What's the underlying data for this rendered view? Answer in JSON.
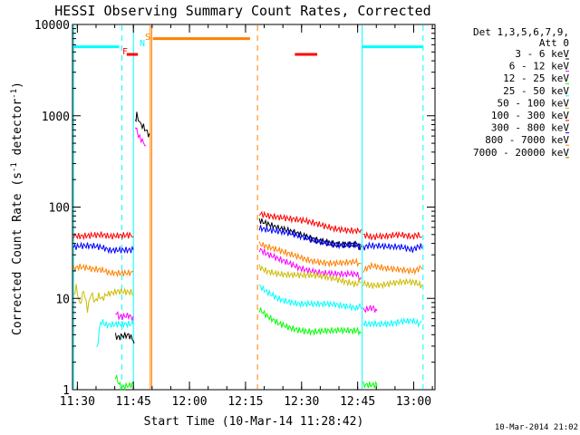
{
  "chart_data": {
    "type": "line",
    "title": "HESSI Observing Summary Count Rates, Corrected",
    "xlabel": "Start Time (10-Mar-14 11:28:42)",
    "ylabel_parts": [
      "Corrected Count Rate (s",
      "-1",
      " detector",
      "-1",
      ")"
    ],
    "x_unit": "minutes after 11:28:42",
    "xlim": [
      0,
      97
    ],
    "ylim": [
      1,
      10000
    ],
    "yscale": "log",
    "x_ticks": [
      {
        "label": "11:30",
        "x": 1.3
      },
      {
        "label": "11:45",
        "x": 16.3
      },
      {
        "label": "12:00",
        "x": 31.3
      },
      {
        "label": "12:15",
        "x": 46.3
      },
      {
        "label": "12:30",
        "x": 61.3
      },
      {
        "label": "12:45",
        "x": 76.3
      },
      {
        "label": "13:00",
        "x": 91.3
      }
    ],
    "y_ticks": [
      {
        "label": "1",
        "y": 1
      },
      {
        "label": "10",
        "y": 10
      },
      {
        "label": "100",
        "y": 100
      },
      {
        "label": "1000",
        "y": 1000
      },
      {
        "label": "10000",
        "y": 10000
      }
    ],
    "legend": {
      "header": [
        "Det 1,3,5,6,7,9,",
        "Att 0"
      ],
      "placement": "right"
    },
    "series": [
      {
        "name": "3 - 6 keV",
        "color": "#000000",
        "segments": [
          [
            [
              11.5,
              4.0
            ],
            [
              13,
              3.9
            ],
            [
              15,
              4.1
            ],
            [
              16.3,
              3.6
            ],
            [
              16.5,
              3.2
            ]
          ],
          [
            [
              16.8,
              950
            ],
            [
              17.2,
              980
            ],
            [
              18,
              880
            ],
            [
              19,
              800
            ],
            [
              20,
              700
            ],
            [
              20.6,
              640
            ]
          ],
          [
            [
              50,
              72
            ],
            [
              52,
              64
            ],
            [
              55,
              56
            ],
            [
              58,
              52
            ],
            [
              61,
              49
            ],
            [
              64,
              46
            ],
            [
              67,
              44
            ],
            [
              70,
              42
            ],
            [
              73,
              40
            ],
            [
              76,
              39
            ],
            [
              77.2,
              38
            ]
          ]
        ]
      },
      {
        "name": "6 - 12 keV",
        "color": "#ff00ff",
        "segments": [
          [
            [
              11.5,
              6.8
            ],
            [
              13,
              6.6
            ],
            [
              15,
              6.9
            ],
            [
              16.3,
              6.4
            ]
          ],
          [
            [
              16.8,
              720
            ],
            [
              17.2,
              690
            ],
            [
              18,
              600
            ],
            [
              19,
              520
            ],
            [
              19.7,
              470
            ]
          ],
          [
            [
              50,
              33
            ],
            [
              52,
              29
            ],
            [
              55,
              26
            ],
            [
              58,
              24
            ],
            [
              61,
              22
            ],
            [
              64,
              21
            ],
            [
              67,
              20
            ],
            [
              70,
              19
            ],
            [
              73,
              18
            ],
            [
              76,
              17.5
            ],
            [
              77.2,
              17
            ]
          ],
          [
            [
              77.8,
              7.8
            ],
            [
              80,
              7.5
            ],
            [
              81.5,
              7.3
            ]
          ]
        ]
      },
      {
        "name": "12 - 25 keV",
        "color": "#00ff00",
        "segments": [
          [
            [
              11.5,
              1.3
            ],
            [
              13,
              1.1
            ],
            [
              16.3,
              1.2
            ]
          ],
          [
            [
              50,
              7.2
            ],
            [
              52,
              6.2
            ],
            [
              55,
              5.4
            ],
            [
              58,
              5.0
            ],
            [
              61,
              4.7
            ],
            [
              64,
              4.5
            ],
            [
              67,
              4.4
            ],
            [
              70,
              4.3
            ],
            [
              73,
              4.2
            ],
            [
              76,
              4.2
            ],
            [
              77.2,
              4.1
            ]
          ],
          [
            [
              77.8,
              1.2
            ],
            [
              81.5,
              1.1
            ]
          ]
        ]
      },
      {
        "name": "25 - 50 keV",
        "color": "#00ffff",
        "segments": [
          [
            [
              6.5,
              2.6
            ],
            [
              7.5,
              5.2
            ],
            [
              9,
              5.4
            ],
            [
              12,
              5.3
            ],
            [
              16.3,
              5.2
            ]
          ],
          [
            [
              50,
              13.5
            ],
            [
              52,
              12
            ],
            [
              55,
              10.5
            ],
            [
              58,
              9.6
            ],
            [
              61,
              9.0
            ],
            [
              64,
              8.6
            ],
            [
              67,
              8.3
            ],
            [
              70,
              8.1
            ],
            [
              73,
              7.9
            ],
            [
              76,
              7.8
            ],
            [
              77.2,
              7.7
            ]
          ],
          [
            [
              77.8,
              5.4
            ],
            [
              80,
              5.6
            ],
            [
              84,
              5.5
            ],
            [
              88,
              5.6
            ],
            [
              91,
              5.5
            ],
            [
              93.5,
              5.6
            ]
          ]
        ]
      },
      {
        "name": "50 - 100 keV",
        "color": "#ccbb00",
        "segments": [
          [
            [
              0.3,
              11
            ],
            [
              1,
              14
            ],
            [
              2,
              9
            ],
            [
              3,
              13
            ],
            [
              4,
              8
            ],
            [
              5,
              12
            ],
            [
              6,
              9.5
            ],
            [
              7,
              11
            ],
            [
              8,
              10
            ],
            [
              9,
              11
            ],
            [
              12,
              11.5
            ],
            [
              16.3,
              11
            ]
          ],
          [
            [
              50,
              23
            ],
            [
              52,
              21
            ],
            [
              55,
              19.5
            ],
            [
              58,
              18.5
            ],
            [
              61,
              17.5
            ],
            [
              64,
              17
            ],
            [
              67,
              16.5
            ],
            [
              70,
              16
            ],
            [
              73,
              15.5
            ],
            [
              76,
              15
            ],
            [
              77.2,
              15
            ]
          ],
          [
            [
              77.8,
              14
            ],
            [
              80,
              14.5
            ],
            [
              84,
              14.3
            ],
            [
              88,
              14.5
            ],
            [
              91,
              14.2
            ],
            [
              93.5,
              14.3
            ]
          ]
        ]
      },
      {
        "name": "100 - 300 keV",
        "color": "#ff0000",
        "segments": [
          [
            [
              0.3,
              52
            ],
            [
              2,
              50
            ],
            [
              5,
              49
            ],
            [
              8,
              48
            ],
            [
              10,
              45
            ],
            [
              12,
              46
            ],
            [
              16.3,
              47
            ]
          ],
          [
            [
              50,
              90
            ],
            [
              52,
              84
            ],
            [
              55,
              78
            ],
            [
              58,
              72
            ],
            [
              61,
              68
            ],
            [
              64,
              65
            ],
            [
              67,
              62
            ],
            [
              70,
              60
            ],
            [
              73,
              59
            ],
            [
              76,
              58
            ],
            [
              77.2,
              57
            ]
          ],
          [
            [
              77.8,
              46
            ],
            [
              80,
              47
            ],
            [
              84,
              46
            ],
            [
              88,
              47
            ],
            [
              91,
              46
            ],
            [
              93.5,
              47
            ]
          ]
        ]
      },
      {
        "name": "300 - 800 keV",
        "color": "#0000ff",
        "segments": [
          [
            [
              0.3,
              38
            ],
            [
              2,
              37
            ],
            [
              5,
              36
            ],
            [
              8,
              34
            ],
            [
              10,
              32
            ],
            [
              12,
              33
            ],
            [
              16.3,
              34
            ]
          ],
          [
            [
              50,
              60
            ],
            [
              52,
              56
            ],
            [
              55,
              52
            ],
            [
              58,
              49
            ],
            [
              61,
              46
            ],
            [
              64,
              44
            ],
            [
              67,
              43
            ],
            [
              70,
              41
            ],
            [
              73,
              40
            ],
            [
              76,
              39
            ],
            [
              77.2,
              39
            ]
          ],
          [
            [
              77.8,
              35
            ],
            [
              80,
              36
            ],
            [
              84,
              35
            ],
            [
              88,
              36
            ],
            [
              91,
              35
            ],
            [
              93.5,
              35
            ]
          ]
        ]
      },
      {
        "name": "800 - 7000 keV",
        "color": "#ff8000",
        "segments": [
          [
            [
              0.3,
              21
            ],
            [
              2,
              21
            ],
            [
              5,
              20
            ],
            [
              8,
              20
            ],
            [
              10,
              19
            ],
            [
              12,
              19.5
            ],
            [
              16.3,
              20
            ]
          ],
          [
            [
              50,
              38
            ],
            [
              52,
              35
            ],
            [
              55,
              32
            ],
            [
              58,
              30
            ],
            [
              61,
              28.5
            ],
            [
              64,
              27
            ],
            [
              67,
              26
            ],
            [
              70,
              25
            ],
            [
              73,
              24.5
            ],
            [
              76,
              24
            ],
            [
              77.2,
              24
            ]
          ],
          [
            [
              77.8,
              21
            ],
            [
              80,
              21.5
            ],
            [
              84,
              21
            ],
            [
              88,
              21.5
            ],
            [
              91,
              21
            ],
            [
              93.5,
              21
            ]
          ]
        ]
      },
      {
        "name": "7000 - 20000 keV",
        "color": "#808000",
        "segments": []
      }
    ],
    "annotations": {
      "flags": [
        {
          "label": "F",
          "color": "#ff0000"
        },
        {
          "label": "N",
          "color": "#00ffff"
        },
        {
          "label": "S",
          "color": "#ff8000"
        }
      ],
      "bars": [
        {
          "color": "#00ffff",
          "x0": 0.3,
          "x1": 12.5,
          "y": 5700
        },
        {
          "color": "#00ffff",
          "x0": 77.5,
          "x1": 93.8,
          "y": 5700
        },
        {
          "color": "#ff0000",
          "x0": 14.5,
          "x1": 17.5,
          "y": 4700
        },
        {
          "color": "#ff0000",
          "x0": 59.5,
          "x1": 65.5,
          "y": 4700
        },
        {
          "color": "#ff8000",
          "x0": 21.5,
          "x1": 47.5,
          "y": 7000
        }
      ],
      "vlines": [
        {
          "x": 0.3,
          "color": "#00ffff",
          "dashed": false
        },
        {
          "x": 13.2,
          "color": "#00ffff",
          "dashed": true
        },
        {
          "x": 16.3,
          "color": "#00ffff",
          "dashed": false
        },
        {
          "x": 20.8,
          "color": "#ff8000",
          "dashed": false
        },
        {
          "x": 21.2,
          "color": "#ff8000",
          "dashed": false
        },
        {
          "x": 49.5,
          "color": "#ff8000",
          "dashed": true
        },
        {
          "x": 77.5,
          "color": "#00ffff",
          "dashed": false
        },
        {
          "x": 93.8,
          "color": "#00ffff",
          "dashed": true
        }
      ]
    },
    "footer": "10-Mar-2014 21:02"
  }
}
